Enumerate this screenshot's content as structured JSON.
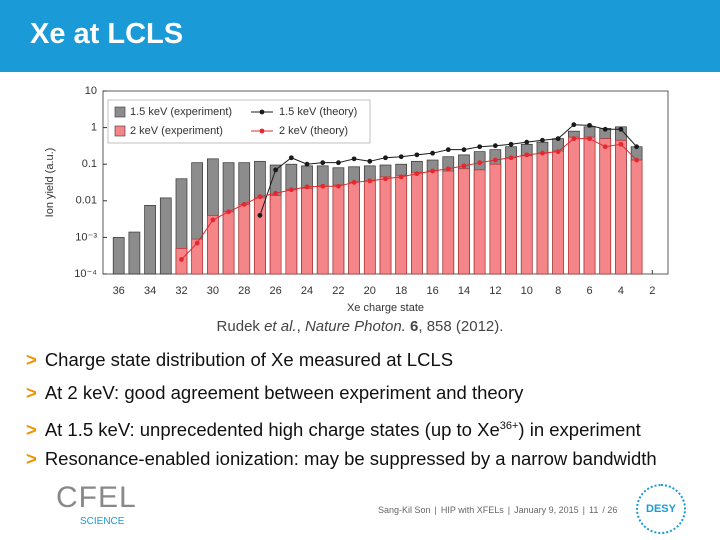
{
  "slide": {
    "title": "Xe at LCLS",
    "citation": [
      "Rudek ",
      "et al.",
      ", ",
      "Nature Photon.",
      " ",
      "6",
      ", 858 (2012)."
    ],
    "marker": ">",
    "bullets": [
      {
        "text": "Charge state distribution of Xe measured at LCLS"
      },
      {
        "text": "At 2 keV: good agreement between experiment and theory"
      },
      {
        "text": "At 1.5 keV: unprecedented high charge states (up to Xe",
        "sup": "36+",
        "after": ") in experiment"
      },
      {
        "text": "Resonance-enabled ionization: may be suppressed by a narrow bandwidth"
      }
    ],
    "footer": [
      "Sang-Kil Son",
      "|",
      "HIP with XFELs",
      "|",
      "January 9, 2015",
      "|",
      "11",
      "/ 26"
    ],
    "logo_left": "CFEL",
    "logo_left_sub": "SCIENCE",
    "logo_right": "DESY"
  },
  "chart_data": {
    "type": "bar",
    "x_label": "Xe charge state",
    "y_label": "Ion yield (a.u.)",
    "x": [
      36,
      35,
      34,
      33,
      32,
      31,
      30,
      29,
      28,
      27,
      26,
      25,
      24,
      23,
      22,
      21,
      20,
      19,
      18,
      17,
      16,
      15,
      14,
      13,
      12,
      11,
      10,
      9,
      8,
      7,
      6,
      5,
      4,
      3
    ],
    "series": [
      {
        "name": "1.5 keV (experiment)",
        "type": "bar",
        "color": "#8c8c8c",
        "values": [
          0.001,
          0.0014,
          0.0075,
          0.012,
          0.04,
          0.11,
          0.14,
          0.11,
          0.11,
          0.12,
          0.095,
          0.1,
          0.09,
          0.09,
          0.08,
          0.085,
          0.09,
          0.095,
          0.1,
          0.12,
          0.13,
          0.16,
          0.18,
          0.22,
          0.25,
          0.3,
          0.35,
          0.4,
          0.5,
          0.8,
          1.05,
          0.95,
          1.05,
          0.3
        ]
      },
      {
        "name": "2 keV (experiment)",
        "type": "bar",
        "color": "#f4868a",
        "values": [
          null,
          null,
          null,
          null,
          0.0005,
          0.0009,
          0.004,
          0.005,
          0.008,
          0.012,
          0.014,
          0.02,
          0.022,
          0.025,
          0.027,
          0.032,
          0.035,
          0.045,
          0.05,
          0.06,
          0.065,
          0.065,
          0.075,
          0.07,
          0.1,
          0.15,
          0.17,
          0.2,
          0.23,
          0.55,
          0.55,
          0.5,
          0.45,
          0.13
        ]
      },
      {
        "name": "1.5 keV (theory)",
        "type": "line",
        "color": "#1a1a1a",
        "values": [
          null,
          null,
          null,
          null,
          null,
          null,
          null,
          null,
          null,
          0.004,
          0.07,
          0.15,
          0.1,
          0.11,
          0.11,
          0.14,
          0.12,
          0.15,
          0.16,
          0.18,
          0.2,
          0.25,
          0.25,
          0.3,
          0.32,
          0.35,
          0.4,
          0.45,
          0.5,
          1.2,
          1.15,
          0.9,
          0.9,
          0.3
        ]
      },
      {
        "name": "2 keV (theory)",
        "type": "line",
        "color": "#e8262d",
        "values": [
          null,
          null,
          null,
          null,
          0.00025,
          0.0007,
          0.003,
          0.005,
          0.008,
          0.013,
          0.016,
          0.02,
          0.024,
          0.025,
          0.025,
          0.032,
          0.035,
          0.04,
          0.045,
          0.055,
          0.065,
          0.075,
          0.09,
          0.11,
          0.13,
          0.15,
          0.18,
          0.2,
          0.22,
          0.5,
          0.5,
          0.3,
          0.35,
          0.13
        ]
      }
    ],
    "xlim": [
      37,
      1
    ],
    "xticks": [
      36,
      34,
      32,
      30,
      28,
      26,
      24,
      22,
      20,
      18,
      16,
      14,
      12,
      10,
      8,
      6,
      4,
      2
    ],
    "ylim": [
      0.0001,
      10
    ],
    "log_y": true,
    "yticks": [
      10,
      1,
      0.1,
      0.01,
      {
        "value": 0.001,
        "label": "10⁻³"
      },
      {
        "value": 0.0001,
        "label": "10⁻⁴"
      }
    ],
    "legend": "upper left"
  }
}
